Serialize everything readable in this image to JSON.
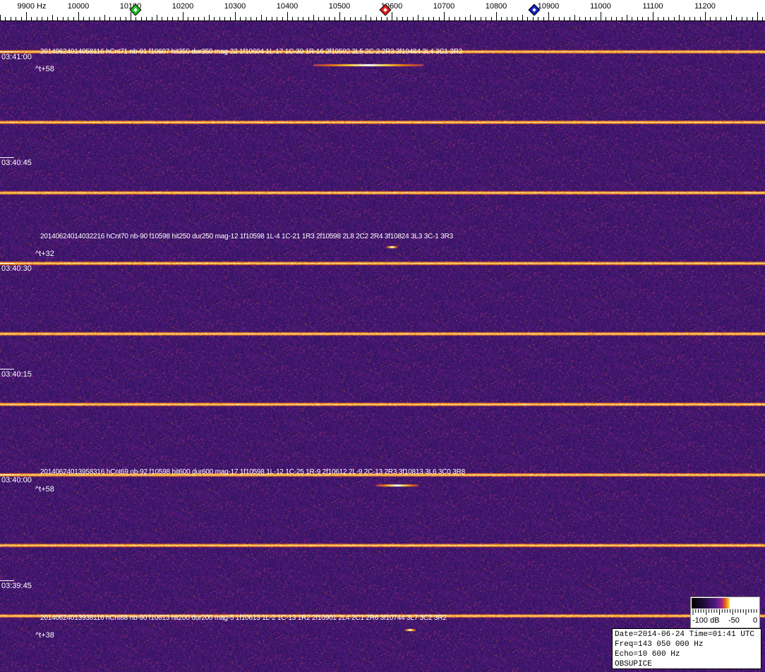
{
  "chart_data": {
    "type": "heatmap",
    "subtype": "spectrogram-waterfall",
    "x_axis": {
      "unit_label": "Hz",
      "range": [
        9850,
        11300
      ],
      "tick_labels": [
        "9900 Hz",
        "10000",
        "10100",
        "10200",
        "10300",
        "10400",
        "10500",
        "10600",
        "10700",
        "10800",
        "10900",
        "11000",
        "11100",
        "11200"
      ],
      "tick_values": [
        9900,
        10000,
        10100,
        10200,
        10300,
        10400,
        10500,
        10600,
        10700,
        10800,
        10900,
        11000,
        11100,
        11200
      ]
    },
    "y_axis": {
      "tick_labels": [
        "03:41:00",
        "03:40:45",
        "03:40:30",
        "03:40:15",
        "03:40:00",
        "03:39:45"
      ],
      "direction": "time decreasing downward"
    },
    "markers": [
      {
        "name": "green",
        "freq": 10110,
        "color": "#22c022"
      },
      {
        "name": "red",
        "freq": 10588,
        "color": "#e02020"
      },
      {
        "name": "blue",
        "freq": 10873,
        "color": "#1020c0"
      }
    ],
    "horizontal_bands_count": 9,
    "events": [
      {
        "text": "20140624014058116 hCnt71 nb-91 f10607 hit350 dur350 mag-22 1f10604 1L-17 1C-30 1R-16 2f10592 2L5 2C-2 2R3 3f10484 3L4 3C1 3R3",
        "tplus": "^t+58",
        "echo_freq": [
          10450,
          10660
        ]
      },
      {
        "text": "20140624014032216 hCnt70 nb-90 f10598 hit250 dur250 mag-12 1f10598 1L-4 1C-21 1R3 2f10598 2L8 2C2 2R4 3f10824 3L3 3C-1 3R3",
        "tplus": "^t+32",
        "echo_freq": [
          10590,
          10610
        ]
      },
      {
        "text": "20140624013958316 hCnt69 nb-92 f10598 hit600 dur600 mag-17 1f10598 1L-12 1C-25 1R-9 2f10612 2L-9 2C-13 2R3 3f10813 3L6 3C0 3R8",
        "tplus": "^t+58",
        "echo_freq": [
          10570,
          10650
        ]
      },
      {
        "text": "20140624013938116 hCnt68 nb-90 f10613 hit200 dur200 mag-5 1f10613 1L-2 1C-13 1R2 2f10901 2L4 2C1 2R6 3f10744 3L7 3C2 3R2",
        "tplus": "^t+38",
        "echo_freq": [
          10625,
          10645
        ]
      }
    ],
    "colorbar": {
      "labels": [
        "-100 dB",
        "-50",
        "0"
      ],
      "range_db": [
        -100,
        0
      ],
      "colors": [
        "#000000",
        "#4a1a80",
        "#a0208a",
        "#f8c030",
        "#ffffff"
      ]
    },
    "background_color": "#3b1a6a"
  },
  "info": {
    "line1": "Date=2014-06-24 Time=01:41 UTC",
    "line2": "Freq=143 050 000 Hz",
    "line3": "Echo=10 600 Hz",
    "line4": "OBSUPICE"
  }
}
